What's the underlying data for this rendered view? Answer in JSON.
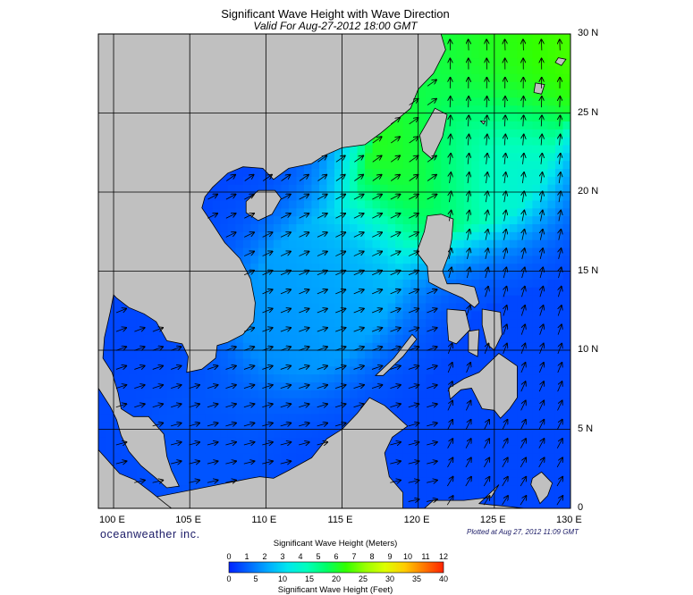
{
  "chart_data": {
    "type": "heatmap",
    "title": "Significant Wave Height with Wave Direction",
    "subtitle": "Valid For Aug-27-2012 18:00 GMT",
    "lon_range": [
      99,
      130
    ],
    "lat_range": [
      0,
      30
    ],
    "lon_ticks": [
      "100 E",
      "105 E",
      "110 E",
      "115 E",
      "120 E",
      "125 E",
      "130 E"
    ],
    "lat_ticks": [
      "30 N",
      "25 N",
      "20 N",
      "15 N",
      "10 N",
      "5 N",
      "0"
    ],
    "grid": true,
    "wave_height_hotspots_m": [
      {
        "lon": 120,
        "lat": 21.5,
        "height_m": 6.5
      },
      {
        "lon": 125,
        "lat": 29.5,
        "height_m": 6.5
      },
      {
        "lon": 128,
        "lat": 29,
        "height_m": 7.0
      },
      {
        "lon": 123,
        "lat": 29.5,
        "height_m": 5.5
      },
      {
        "lon": 125,
        "lat": 22,
        "height_m": 3.5
      },
      {
        "lon": 115,
        "lat": 15,
        "height_m": 2.3
      },
      {
        "lon": 112,
        "lat": 12,
        "height_m": 1.8
      },
      {
        "lon": 106,
        "lat": 4,
        "height_m": 0.8
      }
    ],
    "colorbar": {
      "label_meters": "Significant Wave Height (Meters)",
      "label_feet": "Significant Wave Height (Feet)",
      "meters_ticks": [
        "0",
        "1",
        "2",
        "3",
        "4",
        "5",
        "6",
        "7",
        "8",
        "9",
        "10",
        "11",
        "12"
      ],
      "feet_ticks": [
        "0",
        "5",
        "10",
        "15",
        "20",
        "25",
        "30",
        "35",
        "40"
      ],
      "colors": [
        "#0022ff",
        "#0066ff",
        "#00aaff",
        "#00e6ee",
        "#00ffbb",
        "#00ff66",
        "#33ff00",
        "#99ff00",
        "#ddff00",
        "#ffcc00",
        "#ff7700",
        "#ff2200"
      ]
    }
  },
  "branding": "oceanweather inc.",
  "plotted": "Plotted at Aug 27, 2012 11:09 GMT",
  "colors": {
    "land": "#c0c0c0",
    "background": "#ffffff"
  }
}
